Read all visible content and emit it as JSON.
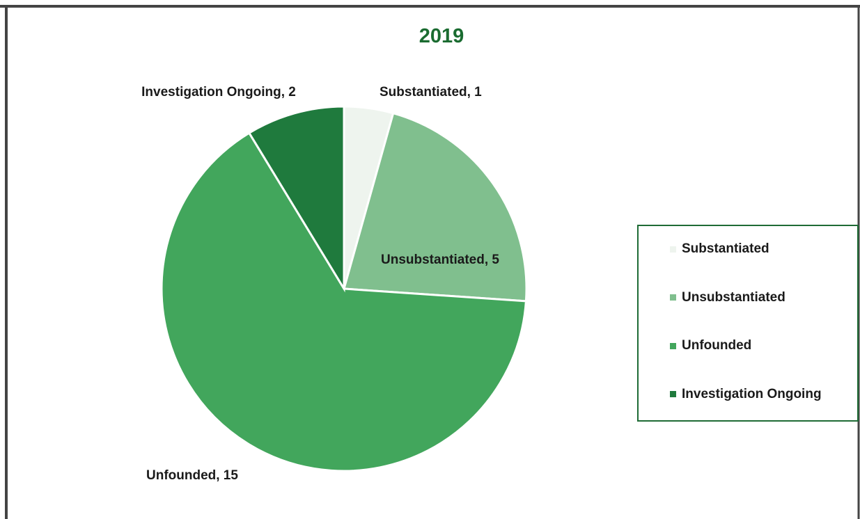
{
  "chart_data": {
    "type": "pie",
    "title": "2019",
    "categories": [
      "Substantiated",
      "Unsubstantiated",
      "Unfounded",
      "Investigation Ongoing"
    ],
    "values": [
      1,
      5,
      15,
      2
    ],
    "value_labels": [
      "Substantiated, 1",
      "Unsubstantiated, 5",
      "Unfounded, 15",
      "Investigation Ongoing, 2"
    ],
    "colors": [
      "#eef4ee",
      "#80bf8e",
      "#42a65c",
      "#1f7a3d"
    ],
    "legend": "right"
  }
}
